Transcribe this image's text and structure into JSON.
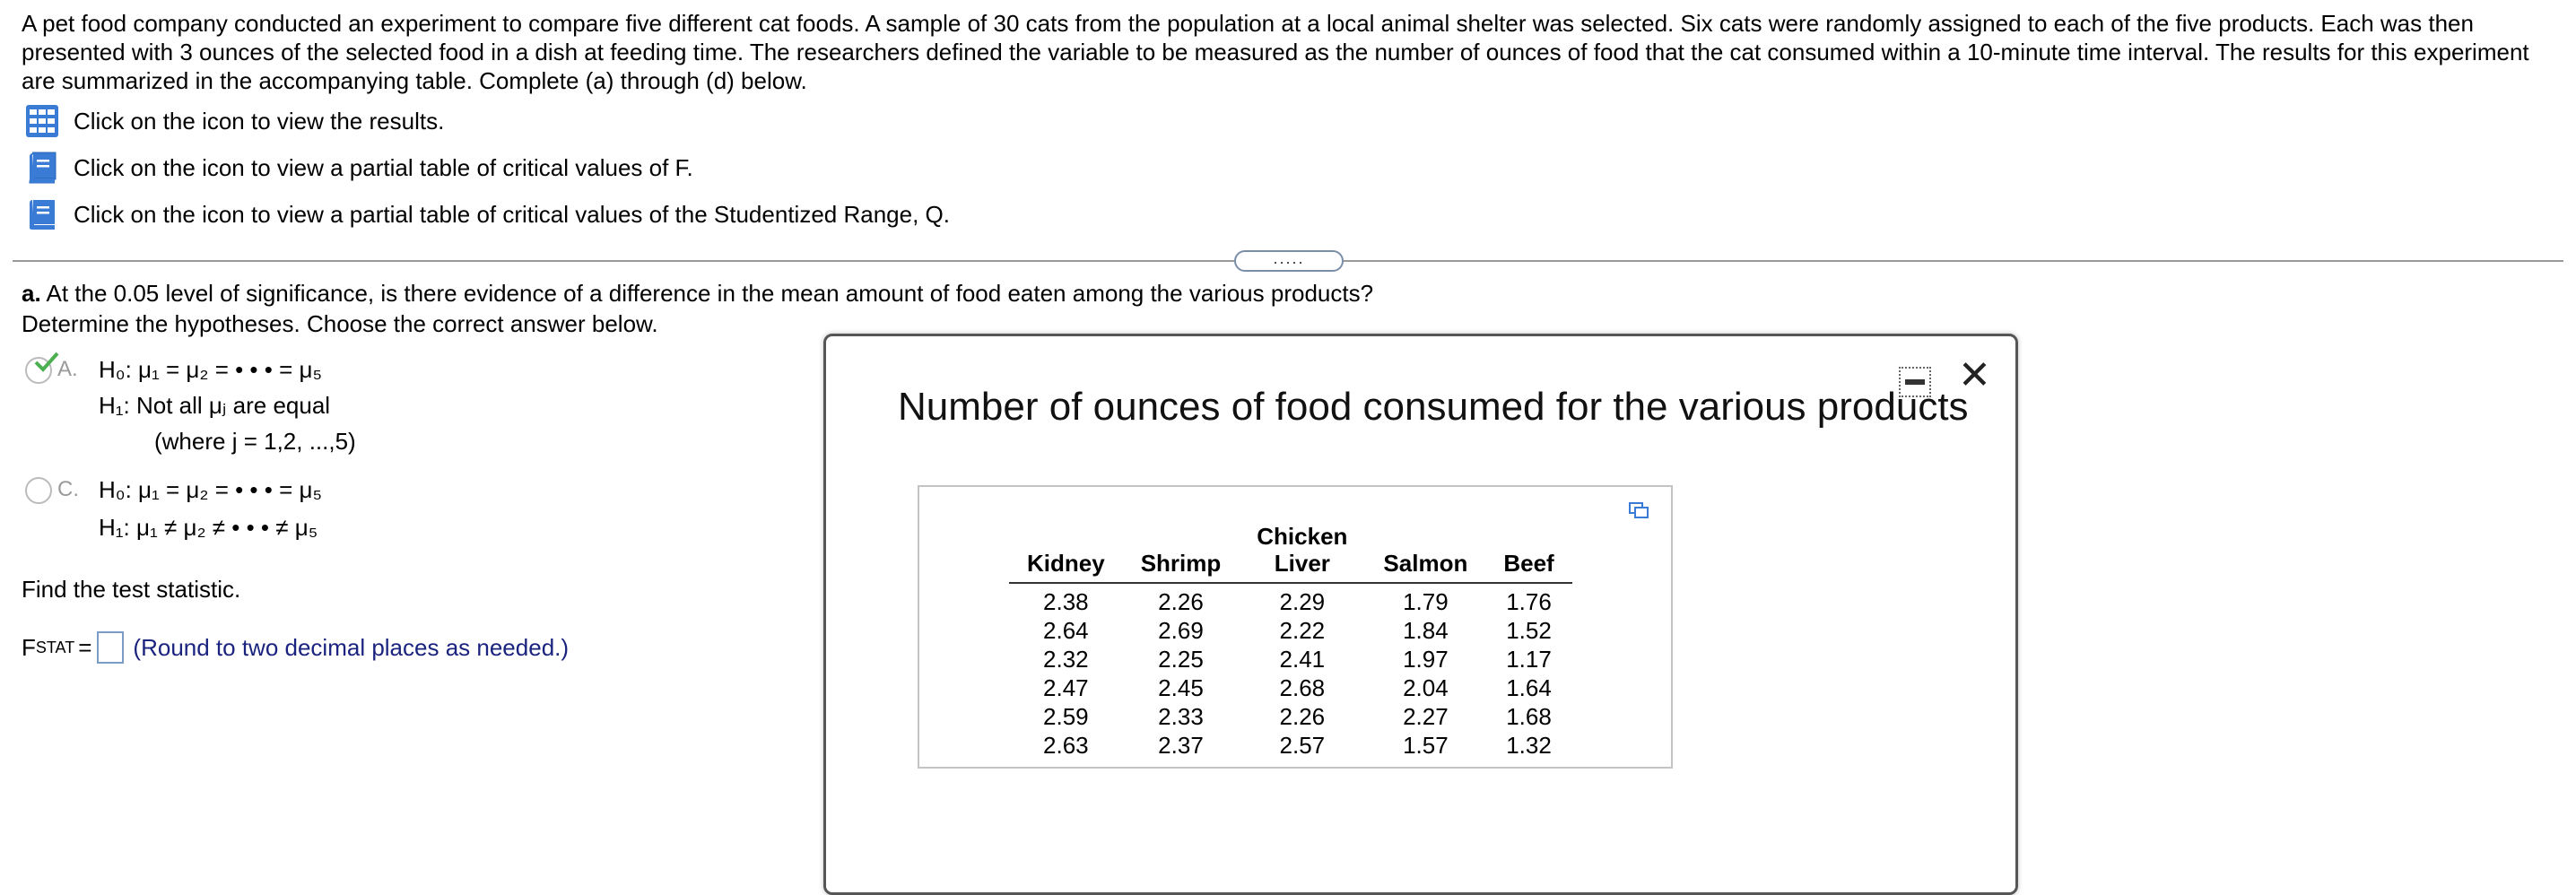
{
  "intro_text": "A pet food company conducted an experiment to compare five different cat foods. A sample of 30 cats from the population at a local animal shelter was selected. Six cats were randomly assigned to each of the five products. Each was then presented with 3 ounces of the selected food in a dish at feeding time. The researchers defined the variable to be measured as the number of ounces of food that the cat consumed within a 10-minute time interval. The results for this experiment are summarized in the accompanying table. Complete (a) through (d) below.",
  "links": {
    "results": "Click on the icon to view the results.",
    "f_table": "Click on the icon to view a partial table of critical values of F.",
    "q_table": "Click on the icon to view a partial table of critical values of the Studentized Range, Q."
  },
  "divider_handle": ".....",
  "question_a": {
    "label": "a.",
    "text": "At the 0.05 level of significance, is there evidence of a difference in the mean amount of food eaten among the various products?",
    "instruction": "Determine the hypotheses. Choose the correct answer below."
  },
  "choices": [
    {
      "letter": "A.",
      "h0": "H₀: μ₁ = μ₂ = • • • = μ₅",
      "h1": "H₁: Not all μⱼ are equal",
      "h1_note": "(where j = 1,2, ...,5)"
    },
    {
      "letter": "C.",
      "h0": "H₀: μ₁ = μ₂ = • • • = μ₅",
      "h1": "H₁: μ₁ ≠ μ₂ ≠ • • • ≠ μ₅"
    }
  ],
  "find_text": "Find the test statistic.",
  "fstat": {
    "label": "F",
    "label_sub": "STAT",
    "equals": "=",
    "hint": "(Round to two decimal places as needed.)"
  },
  "dialog": {
    "title": "Number of ounces of food consumed for the various products",
    "close": "✕",
    "columns": [
      "Kidney",
      "Shrimp",
      "Chicken Liver",
      "Salmon",
      "Beef"
    ],
    "rows": [
      [
        "2.38",
        "2.26",
        "2.29",
        "1.79",
        "1.76"
      ],
      [
        "2.64",
        "2.69",
        "2.22",
        "1.84",
        "1.52"
      ],
      [
        "2.32",
        "2.25",
        "2.41",
        "1.97",
        "1.17"
      ],
      [
        "2.47",
        "2.45",
        "2.68",
        "2.04",
        "1.64"
      ],
      [
        "2.59",
        "2.33",
        "2.26",
        "2.27",
        "1.68"
      ],
      [
        "2.63",
        "2.37",
        "2.57",
        "1.57",
        "1.32"
      ]
    ]
  },
  "colors": {
    "accent": "#3a7bd5",
    "check": "#4caf50",
    "hint": "#1a237e"
  }
}
